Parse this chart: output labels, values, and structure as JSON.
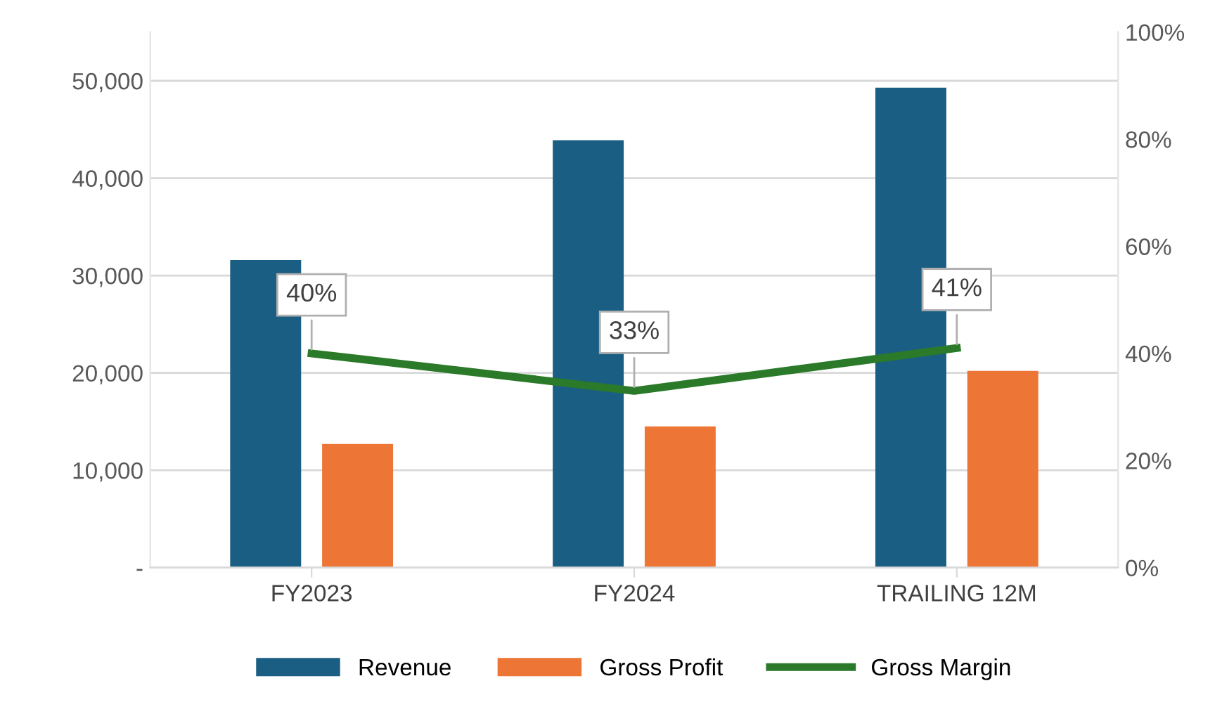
{
  "chart_data": {
    "type": "bar",
    "categories": [
      "FY2023",
      "FY2024",
      "TRAILING 12M"
    ],
    "series": [
      {
        "name": "Revenue",
        "color": "#1b5e83",
        "values": [
          31600,
          43900,
          49300
        ]
      },
      {
        "name": "Gross Profit",
        "color": "#ed7535",
        "values": [
          12700,
          14500,
          20200
        ]
      },
      {
        "name": "Gross Margin",
        "type": "line",
        "axis": "y2",
        "color": "#2a7a2a",
        "values": [
          40,
          33,
          41
        ],
        "value_labels": [
          "40%",
          "33%",
          "41%"
        ]
      }
    ],
    "ylim": [
      0,
      55000
    ],
    "yticks": [
      {
        "value": 0,
        "label": "-"
      },
      {
        "value": 10000,
        "label": "10,000"
      },
      {
        "value": 20000,
        "label": "20,000"
      },
      {
        "value": 30000,
        "label": "30,000"
      },
      {
        "value": 40000,
        "label": "40,000"
      },
      {
        "value": 50000,
        "label": "50,000"
      }
    ],
    "y2lim": [
      0,
      100
    ],
    "y2ticks": [
      {
        "value": 0,
        "label": "0%"
      },
      {
        "value": 20,
        "label": "20%"
      },
      {
        "value": 40,
        "label": "40%"
      },
      {
        "value": 60,
        "label": "60%"
      },
      {
        "value": 80,
        "label": "80%"
      },
      {
        "value": 100,
        "label": "100%"
      }
    ],
    "grid": "y",
    "legend": "bottom",
    "marker": "none",
    "line_style": "solid"
  }
}
